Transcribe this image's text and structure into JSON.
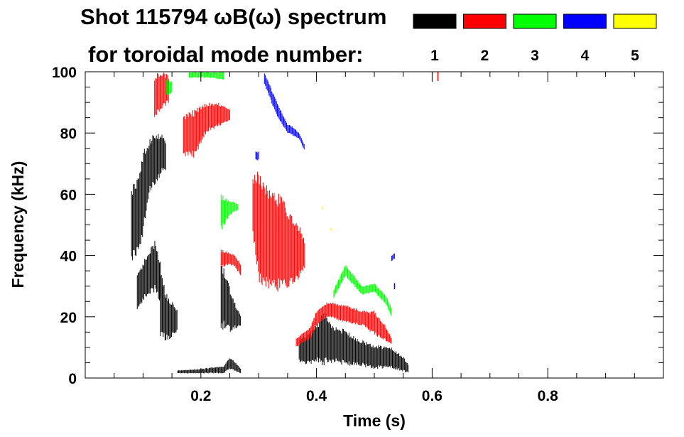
{
  "chart_data": {
    "type": "scatter",
    "title_line1": "Shot 115794 ωB(ω) spectrum",
    "title_line2": "for toroidal mode number:",
    "xlabel": "Time (s)",
    "ylabel": "Frequency (kHz)",
    "xlim": [
      0.0,
      1.0
    ],
    "ylim": [
      0,
      100
    ],
    "xticks": [
      0.2,
      0.4,
      0.6,
      0.8
    ],
    "yticks": [
      0,
      20,
      40,
      60,
      80,
      100
    ],
    "xtick_labels": [
      "0.2",
      "0.4",
      "0.6",
      "0.8"
    ],
    "ytick_labels": [
      "0",
      "20",
      "40",
      "60",
      "80",
      "100"
    ],
    "legend_position": "top-right",
    "legend": [
      {
        "label": "1",
        "color": "#000000"
      },
      {
        "label": "2",
        "color": "#ff0000"
      },
      {
        "label": "3",
        "color": "#00ff00"
      },
      {
        "label": "4",
        "color": "#0000ff"
      },
      {
        "label": "5",
        "color": "#ffff00"
      }
    ],
    "series": [
      {
        "mode": 1,
        "color": "#000000",
        "segments": [
          {
            "t": [
              0.08,
              0.09,
              0.1,
              0.11,
              0.12,
              0.13,
              0.14
            ],
            "f_lo": [
              38,
              40,
              45,
              60,
              62,
              66,
              68
            ],
            "f_hi": [
              63,
              66,
              74,
              78,
              80,
              80,
              78
            ]
          },
          {
            "t": [
              0.09,
              0.1,
              0.12,
              0.13
            ],
            "f_lo": [
              22,
              25,
              28,
              24
            ],
            "f_hi": [
              35,
              38,
              45,
              38
            ]
          },
          {
            "t": [
              0.13,
              0.14,
              0.15,
              0.16
            ],
            "f_lo": [
              12,
              12,
              13,
              15
            ],
            "f_hi": [
              35,
              28,
              25,
              22
            ]
          },
          {
            "t": [
              0.235,
              0.24,
              0.25,
              0.26,
              0.27
            ],
            "f_lo": [
              14,
              16,
              15,
              16,
              17
            ],
            "f_hi": [
              38,
              36,
              30,
              24,
              20
            ]
          },
          {
            "t": [
              0.16,
              0.2,
              0.24,
              0.25,
              0.26,
              0.27
            ],
            "f_lo": [
              1.5,
              1.5,
              1.5,
              3,
              2,
              1.5
            ],
            "f_hi": [
              2.5,
              3,
              4,
              7,
              5,
              3
            ]
          },
          {
            "t": [
              0.37,
              0.39,
              0.405,
              0.41,
              0.43,
              0.45,
              0.47,
              0.5,
              0.53,
              0.55,
              0.56
            ],
            "f_lo": [
              5,
              4,
              5,
              4,
              5,
              4,
              4,
              3,
              3,
              2,
              1.5
            ],
            "f_hi": [
              13,
              15,
              19,
              23,
              17,
              16,
              13,
              11,
              10,
              7,
              4
            ]
          }
        ]
      },
      {
        "mode": 2,
        "color": "#ff0000",
        "segments": [
          {
            "t": [
              0.12,
              0.125,
              0.135,
              0.145
            ],
            "f_lo": [
              85,
              86,
              88,
              90
            ],
            "f_hi": [
              99,
              100,
              100,
              99
            ]
          },
          {
            "t": [
              0.17,
              0.19,
              0.21,
              0.23,
              0.25
            ],
            "f_lo": [
              72,
              72,
              80,
              82,
              84
            ],
            "f_hi": [
              86,
              88,
              90,
              90,
              88
            ]
          },
          {
            "t": [
              0.235,
              0.25,
              0.26,
              0.27
            ],
            "f_lo": [
              36,
              37,
              36,
              33
            ],
            "f_hi": [
              42,
              41,
              40,
              37
            ]
          },
          {
            "t": [
              0.29,
              0.3,
              0.32,
              0.34,
              0.35,
              0.37,
              0.38
            ],
            "f_lo": [
              46,
              30,
              28,
              28,
              28,
              32,
              36
            ],
            "f_hi": [
              66,
              68,
              62,
              60,
              55,
              50,
              45
            ]
          },
          {
            "t": [
              0.365,
              0.39,
              0.4,
              0.42,
              0.45,
              0.48,
              0.5,
              0.52,
              0.53
            ],
            "f_lo": [
              10,
              13,
              17,
              20,
              18,
              17,
              14,
              12,
              11
            ],
            "f_hi": [
              13,
              17,
              22,
              25,
              24,
              22,
              22,
              17,
              13
            ]
          },
          {
            "t": [
              0.61
            ],
            "f_lo": [
              97
            ],
            "f_hi": [
              100
            ]
          }
        ]
      },
      {
        "mode": 3,
        "color": "#00ff00",
        "segments": [
          {
            "t": [
              0.14,
              0.15
            ],
            "f_lo": [
              92,
              93
            ],
            "f_hi": [
              98,
              97
            ]
          },
          {
            "t": [
              0.18,
              0.2,
              0.22,
              0.24
            ],
            "f_lo": [
              98,
              98,
              98,
              97
            ],
            "f_hi": [
              100,
              100,
              100,
              100
            ]
          },
          {
            "t": [
              0.235,
              0.25,
              0.265
            ],
            "f_lo": [
              48,
              53,
              55
            ],
            "f_hi": [
              60,
              58,
              57
            ]
          },
          {
            "t": [
              0.43,
              0.45,
              0.48,
              0.5,
              0.52,
              0.53
            ],
            "f_lo": [
              26,
              33,
              27,
              28,
              24,
              20
            ],
            "f_hi": [
              29,
              37,
              30,
              31,
              27,
              23
            ]
          }
        ]
      },
      {
        "mode": 4,
        "color": "#0000ff",
        "segments": [
          {
            "t": [
              0.31,
              0.33,
              0.35,
              0.36,
              0.37,
              0.38
            ],
            "f_lo": [
              96,
              86,
              80,
              79,
              78,
              74
            ],
            "f_hi": [
              100,
              91,
              83,
              82,
              80,
              76
            ]
          },
          {
            "t": [
              0.295,
              0.3
            ],
            "f_lo": [
              71,
              71
            ],
            "f_hi": [
              74,
              74
            ]
          },
          {
            "t": [
              0.53,
              0.535
            ],
            "f_lo": [
              38,
              39
            ],
            "f_hi": [
              40,
              41
            ]
          },
          {
            "t": [
              0.535
            ],
            "f_lo": [
              29
            ],
            "f_hi": [
              31
            ]
          }
        ]
      },
      {
        "mode": 5,
        "color": "#ffff00",
        "segments": [
          {
            "t": [
              0.41
            ],
            "f_lo": [
              55
            ],
            "f_hi": [
              56
            ]
          },
          {
            "t": [
              0.425
            ],
            "f_lo": [
              48
            ],
            "f_hi": [
              49
            ]
          }
        ]
      }
    ]
  }
}
